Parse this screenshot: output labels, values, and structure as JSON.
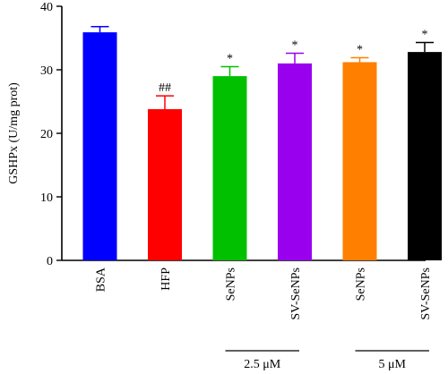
{
  "chart_data": {
    "type": "bar",
    "title": "",
    "xlabel": "",
    "ylabel": "GSHPx (U/mg prot)",
    "ylim": [
      0,
      40
    ],
    "yticks": [
      0,
      10,
      20,
      30,
      40
    ],
    "grid": false,
    "categories": [
      "BSA",
      "HFP",
      "SeNPs",
      "SV-SeNPs",
      "SeNPs",
      "SV-SeNPs"
    ],
    "values": [
      35.9,
      23.8,
      29.0,
      31.0,
      31.2,
      32.8
    ],
    "errors": [
      0.9,
      2.1,
      1.5,
      1.6,
      0.7,
      1.5
    ],
    "colors": [
      "#0000ff",
      "#ff0000",
      "#00c000",
      "#9900ee",
      "#ff7f00",
      "#000000"
    ],
    "annotations": [
      "",
      "##",
      "*",
      "*",
      "*",
      "*"
    ],
    "group_labels": [
      {
        "label": "2.5 μM",
        "categories": [
          2,
          3
        ]
      },
      {
        "label": "5 μM",
        "categories": [
          4,
          5
        ]
      }
    ]
  }
}
